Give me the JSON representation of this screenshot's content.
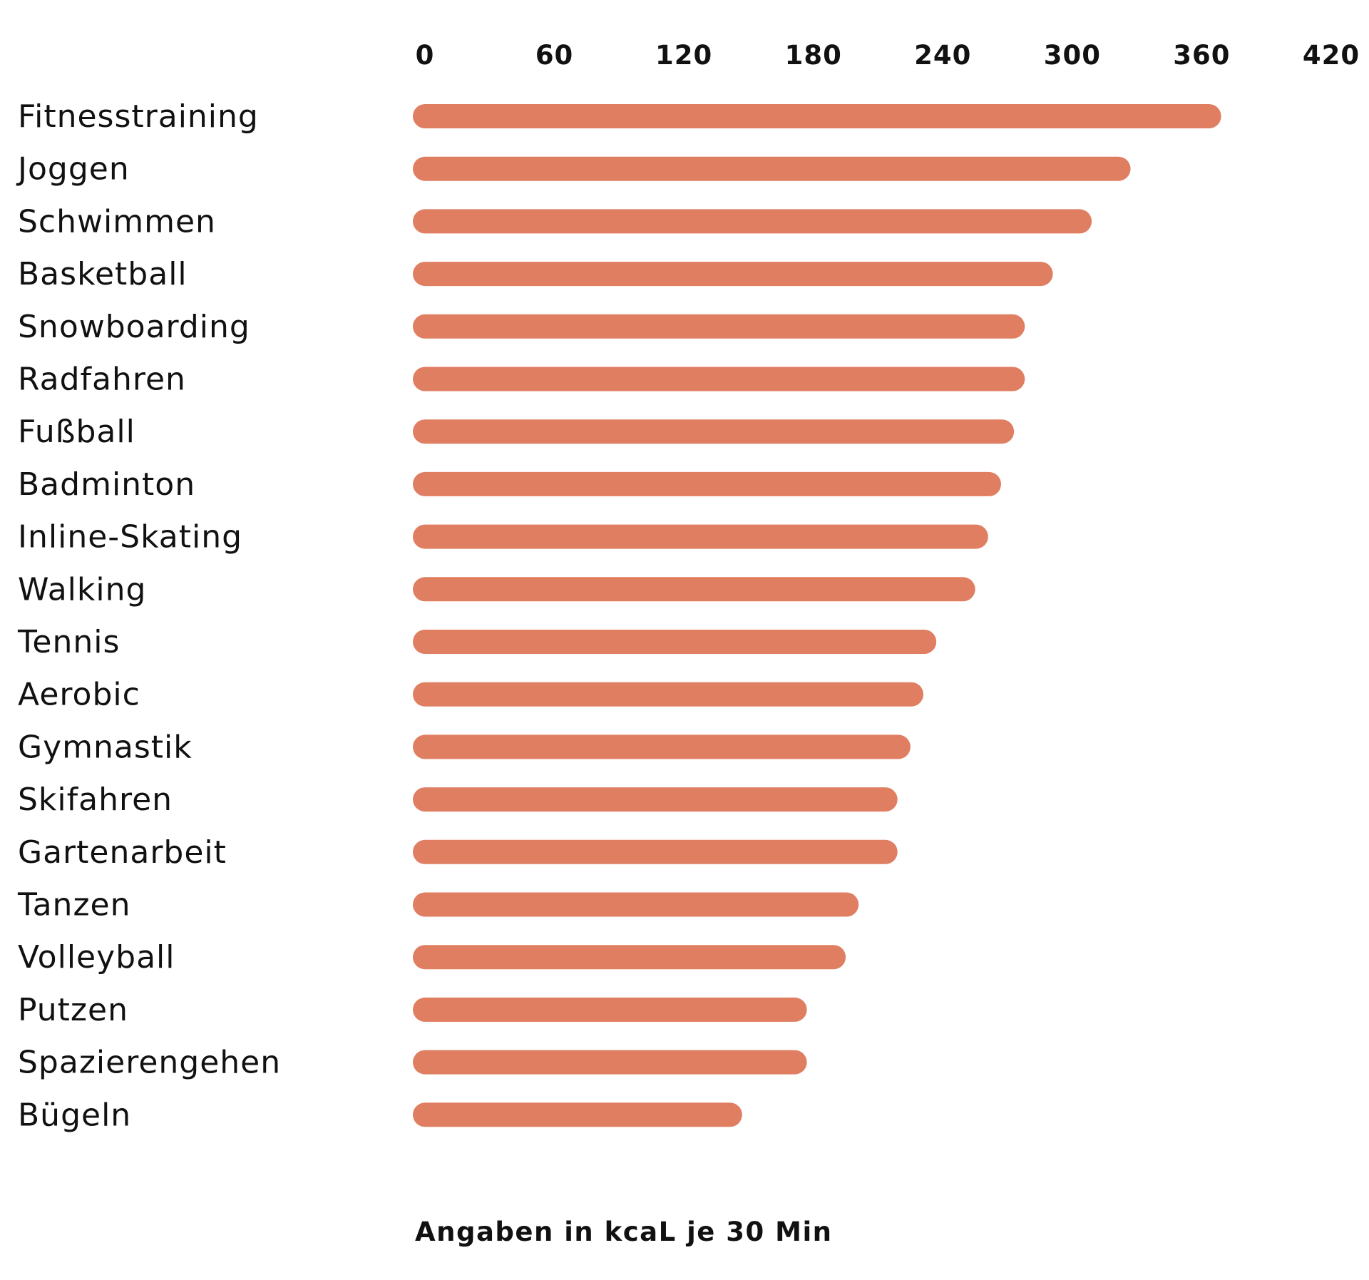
{
  "chart_data": {
    "type": "bar",
    "orientation": "horizontal",
    "categories": [
      "Fitnesstraining",
      "Joggen",
      "Schwimmen",
      "Basketball",
      "Snowboarding",
      "Radfahren",
      "Fußball",
      "Badminton",
      "Inline-Skating",
      "Walking",
      "Tennis",
      "Aerobic",
      "Gymnastik",
      "Skifahren",
      "Gartenarbeit",
      "Tanzen",
      "Volleyball",
      "Putzen",
      "Spazierengehen",
      "Bügeln"
    ],
    "values": [
      369,
      327,
      309,
      291,
      278,
      278,
      273,
      267,
      261,
      255,
      237,
      231,
      225,
      219,
      219,
      201,
      195,
      177,
      177,
      147
    ],
    "xlim": [
      0,
      420
    ],
    "ticks": [
      "0",
      "60",
      "120",
      "180",
      "240",
      "300",
      "360",
      "420"
    ],
    "tick_values": [
      0,
      60,
      120,
      180,
      240,
      300,
      360,
      420
    ],
    "tick_position": "top",
    "xlabel": "Angaben in kcaL je 30 Min",
    "grid": false,
    "legend": "none",
    "bar_color": "#e07e62"
  }
}
